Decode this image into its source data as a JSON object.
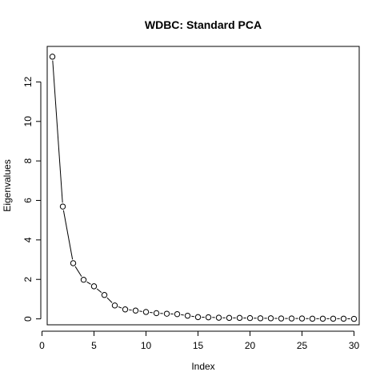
{
  "chart_data": {
    "type": "line",
    "title": "WDBC: Standard PCA",
    "xlabel": "Index",
    "ylabel": "Eigenvalues",
    "xlim": [
      0.5,
      30.5
    ],
    "ylim": [
      -0.3,
      13.8
    ],
    "x_ticks": [
      0,
      5,
      10,
      15,
      20,
      25,
      30
    ],
    "y_ticks": [
      0,
      2,
      4,
      6,
      8,
      10,
      12
    ],
    "grid": false,
    "legend": "none",
    "marker": "open-circle",
    "line_color": "#000000",
    "x": [
      1,
      2,
      3,
      4,
      5,
      6,
      7,
      8,
      9,
      10,
      11,
      12,
      13,
      14,
      15,
      16,
      17,
      18,
      19,
      20,
      21,
      22,
      23,
      24,
      25,
      26,
      27,
      28,
      29,
      30
    ],
    "y": [
      13.28,
      5.69,
      2.82,
      1.98,
      1.65,
      1.21,
      0.68,
      0.48,
      0.42,
      0.35,
      0.29,
      0.26,
      0.24,
      0.16,
      0.09,
      0.08,
      0.06,
      0.05,
      0.05,
      0.04,
      0.03,
      0.03,
      0.02,
      0.02,
      0.02,
      0.01,
      0.01,
      0.01,
      0.01,
      0.0
    ]
  }
}
